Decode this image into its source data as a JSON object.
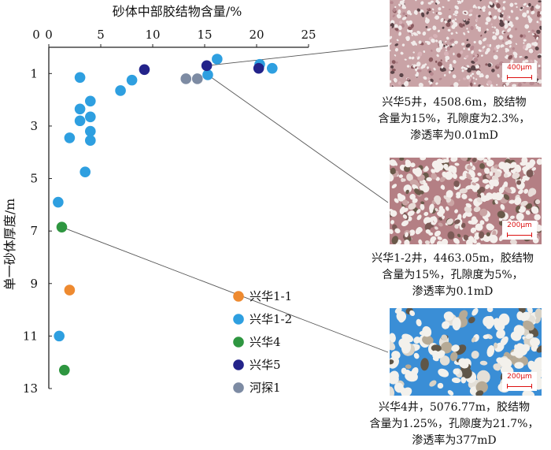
{
  "chart_data": {
    "type": "scatter",
    "title": "砂体中部胶结物含量/%",
    "xlabel": "砂体中部胶结物含量/%",
    "ylabel": "单一砂体厚度/m",
    "x_axis_position": "top",
    "y_inverted": true,
    "xlim": [
      0,
      25
    ],
    "ylim": [
      0,
      13
    ],
    "xticks": [
      "0",
      "5",
      "10",
      "15",
      "20",
      "25"
    ],
    "yticks": [
      "1",
      "3",
      "5",
      "7",
      "9",
      "11",
      "13"
    ],
    "legend_position": "bottom-right",
    "series": [
      {
        "name": "兴华1-1",
        "color": "#ee8a30",
        "points": [
          [
            2.0,
            9.25
          ]
        ]
      },
      {
        "name": "兴华1-2",
        "color": "#2e9fe0",
        "points": [
          [
            16.2,
            0.45
          ],
          [
            20.3,
            0.65
          ],
          [
            21.5,
            0.8
          ],
          [
            15.3,
            1.05
          ],
          [
            3.0,
            1.15
          ],
          [
            8.0,
            1.25
          ],
          [
            6.9,
            1.65
          ],
          [
            4.0,
            2.05
          ],
          [
            3.0,
            2.35
          ],
          [
            4.0,
            2.65
          ],
          [
            3.0,
            2.8
          ],
          [
            4.0,
            3.2
          ],
          [
            2.0,
            3.45
          ],
          [
            4.0,
            3.55
          ],
          [
            3.5,
            4.75
          ],
          [
            0.9,
            5.9
          ],
          [
            1.0,
            11.0
          ]
        ]
      },
      {
        "name": "兴华4",
        "color": "#2e9640",
        "points": [
          [
            1.25,
            6.85
          ],
          [
            1.5,
            12.3
          ]
        ]
      },
      {
        "name": "兴华5",
        "color": "#23238a",
        "points": [
          [
            9.2,
            0.85
          ],
          [
            15.2,
            0.7
          ],
          [
            20.2,
            0.8
          ]
        ]
      },
      {
        "name": "河探1",
        "color": "#7d8ba3",
        "points": [
          [
            13.2,
            1.2
          ],
          [
            14.3,
            1.2
          ]
        ]
      }
    ]
  },
  "micrographs": [
    {
      "scale": "400μm",
      "caption": [
        "兴华5井，4508.6m，胶结物",
        "含量为15%，孔隙度为2.3%，",
        "渗透率为0.01mD"
      ]
    },
    {
      "scale": "200μm",
      "caption": [
        "兴华1-2井，4463.05m，胶结物",
        "含量为15%，孔隙度为5%，",
        "渗透率为0.1mD"
      ]
    },
    {
      "scale": "200μm",
      "caption": [
        "兴华4井，5076.77m，胶结物",
        "含量为1.25%，孔隙度为21.7%，",
        "渗透率为377mD"
      ]
    }
  ],
  "colors": {
    "axis": "#222222",
    "leader": "#555555"
  }
}
